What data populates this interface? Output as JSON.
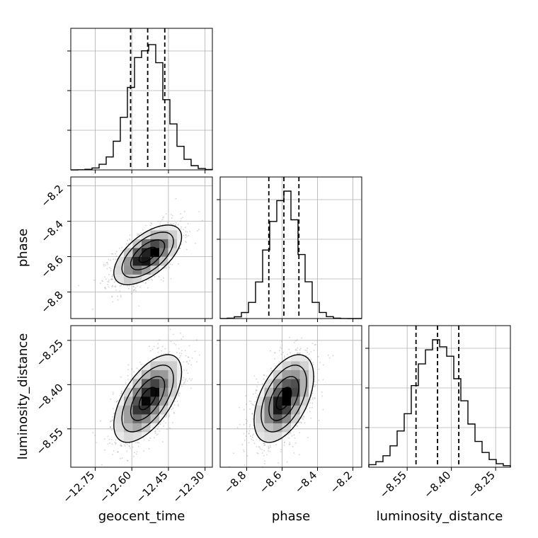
{
  "chart_data": {
    "type": "corner",
    "parameters": [
      "geocent_time",
      "phase",
      "luminosity_distance"
    ],
    "axes": {
      "geocent_time": {
        "range": [
          -12.85,
          -12.27
        ],
        "ticks": [
          -12.75,
          -12.6,
          -12.45,
          -12.3
        ],
        "tick_labels": [
          "−12.75",
          "−12.60",
          "−12.45",
          "−12.30"
        ],
        "label": "geocent_time"
      },
      "phase": {
        "range": [
          -8.95,
          -8.15
        ],
        "ticks": [
          -8.8,
          -8.6,
          -8.4,
          -8.2
        ],
        "tick_labels": [
          "−8.8",
          "−8.6",
          "−8.4",
          "−8.2"
        ],
        "label": "phase"
      },
      "luminosity_distance": {
        "range": [
          -8.68,
          -8.2
        ],
        "ticks": [
          -8.55,
          -8.4,
          -8.25
        ],
        "tick_labels": [
          "−8.55",
          "−8.40",
          "−8.25"
        ],
        "label": "luminosity_distance"
      }
    },
    "marginals": [
      {
        "parameter": "geocent_time",
        "mean": -12.535,
        "sigma": 0.07,
        "quantiles": [
          -12.605,
          -12.535,
          -12.465
        ]
      },
      {
        "parameter": "phase",
        "mean": -8.59,
        "sigma": 0.085,
        "quantiles": [
          -8.675,
          -8.59,
          -8.505
        ]
      },
      {
        "parameter": "luminosity_distance",
        "mean": -8.447,
        "sigma": 0.075,
        "quantiles": [
          -8.52,
          -8.447,
          -8.375
        ]
      }
    ],
    "joint": [
      {
        "x": "geocent_time",
        "y": "phase",
        "correlation": 0.6
      },
      {
        "x": "geocent_time",
        "y": "luminosity_distance",
        "correlation": 0.6
      },
      {
        "x": "phase",
        "y": "luminosity_distance",
        "correlation": 0.5
      }
    ],
    "grid": true,
    "colors": {
      "line": "#000000",
      "grid": "#b0b0b0",
      "points": "#808080"
    }
  }
}
